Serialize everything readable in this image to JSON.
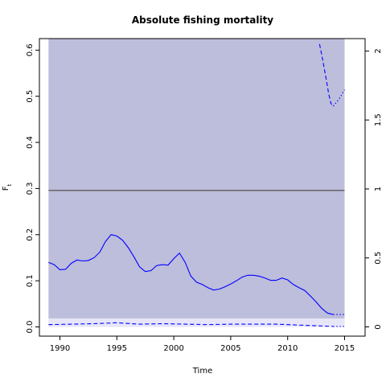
{
  "chart_data": {
    "type": "line",
    "title": "Absolute fishing mortality",
    "xlabel": "Time",
    "ylabel": "F",
    "ylabel_subscript": "t",
    "xlim": [
      1988.2,
      2016.8
    ],
    "ylim": [
      -0.02,
      0.625
    ],
    "x_ticks": [
      1990,
      1995,
      2000,
      2005,
      2010,
      2015
    ],
    "x_tick_labels": [
      "1990",
      "1995",
      "2000",
      "2005",
      "2010",
      "2015"
    ],
    "y_ticks": [
      0.0,
      0.1,
      0.2,
      0.3,
      0.4,
      0.5,
      0.6
    ],
    "y_tick_labels": [
      "0.0",
      "0.1",
      "0.2",
      "0.3",
      "0.4",
      "0.5",
      "0.6"
    ],
    "right_axis": {
      "ylim": [
        -0.067,
        2.09
      ],
      "ticks": [
        0,
        0.5,
        1,
        1.5,
        2
      ],
      "tick_labels": [
        "0",
        "0.5",
        "1",
        "1.5",
        "2"
      ]
    },
    "colors": {
      "confidence_band": "#bdbddc",
      "lower_band": "#e6e6f8",
      "estimate": "#0000ff",
      "reference": "#666666",
      "axis": "#000000"
    },
    "confidence_band": {
      "x_start": 1989.0,
      "x_end": 2015.0,
      "upper": 0.625,
      "lower": 0.018
    },
    "lower_band_secondary": {
      "x_start": 1989.0,
      "x_end": 2015.0,
      "upper": 0.018,
      "lower": 0.0
    },
    "reference_line": {
      "y": 0.296,
      "x_start": 1989.0,
      "x_end": 2015.0
    },
    "series": [
      {
        "style": "solid",
        "x": [
          1989.0,
          1989.5,
          1990.0,
          1990.5,
          1991.0,
          1991.5,
          1992.0,
          1992.5,
          1993.0,
          1993.5,
          1994.0,
          1994.5,
          1995.0,
          1995.5,
          1996.0,
          1996.5,
          1997.0,
          1997.5,
          1998.0,
          1998.5,
          1999.0,
          1999.5,
          2000.0,
          2000.5,
          2001.0,
          2001.5,
          2002.0,
          2002.5,
          2003.0,
          2003.5,
          2004.0,
          2004.5,
          2005.0,
          2005.5,
          2006.0,
          2006.5,
          2007.0,
          2007.5,
          2008.0,
          2008.5,
          2009.0,
          2009.5,
          2010.0,
          2010.5,
          2011.0,
          2011.5,
          2012.0,
          2012.5,
          2013.0,
          2013.5,
          2014.0
        ],
        "values": [
          0.14,
          0.135,
          0.124,
          0.125,
          0.138,
          0.145,
          0.143,
          0.144,
          0.15,
          0.162,
          0.185,
          0.2,
          0.197,
          0.188,
          0.172,
          0.152,
          0.13,
          0.12,
          0.122,
          0.133,
          0.135,
          0.134,
          0.148,
          0.16,
          0.14,
          0.11,
          0.097,
          0.092,
          0.085,
          0.08,
          0.082,
          0.087,
          0.093,
          0.1,
          0.108,
          0.112,
          0.112,
          0.11,
          0.106,
          0.101,
          0.101,
          0.106,
          0.102,
          0.092,
          0.085,
          0.079,
          0.067,
          0.054,
          0.04,
          0.03,
          0.027
        ]
      },
      {
        "style": "dotted",
        "x": [
          2014.0,
          2014.5,
          2015.0
        ],
        "values": [
          0.027,
          0.027,
          0.027
        ]
      },
      {
        "style": "dashed",
        "x": [
          1989.0,
          1991.0,
          1993.0,
          1995.0,
          1997.0,
          1999.0,
          2001.0,
          2003.0,
          2005.0,
          2007.0,
          2009.0,
          2011.0,
          2013.0,
          2014.0
        ],
        "values": [
          0.005,
          0.006,
          0.007,
          0.009,
          0.006,
          0.007,
          0.006,
          0.005,
          0.006,
          0.006,
          0.006,
          0.004,
          0.002,
          0.001
        ]
      },
      {
        "style": "dotted",
        "x": [
          2014.0,
          2014.5,
          2015.0
        ],
        "values": [
          0.001,
          0.001,
          0.001
        ]
      },
      {
        "style": "dashed",
        "axis": "right",
        "x": [
          2012.8,
          2013.0,
          2013.2,
          2013.4,
          2013.6,
          2013.8,
          2014.0
        ],
        "values": [
          2.05,
          1.97,
          1.88,
          1.79,
          1.69,
          1.62,
          1.6
        ]
      },
      {
        "style": "dotted",
        "axis": "right",
        "x": [
          2014.0,
          2014.5,
          2015.0
        ],
        "values": [
          1.6,
          1.65,
          1.72
        ]
      }
    ]
  }
}
